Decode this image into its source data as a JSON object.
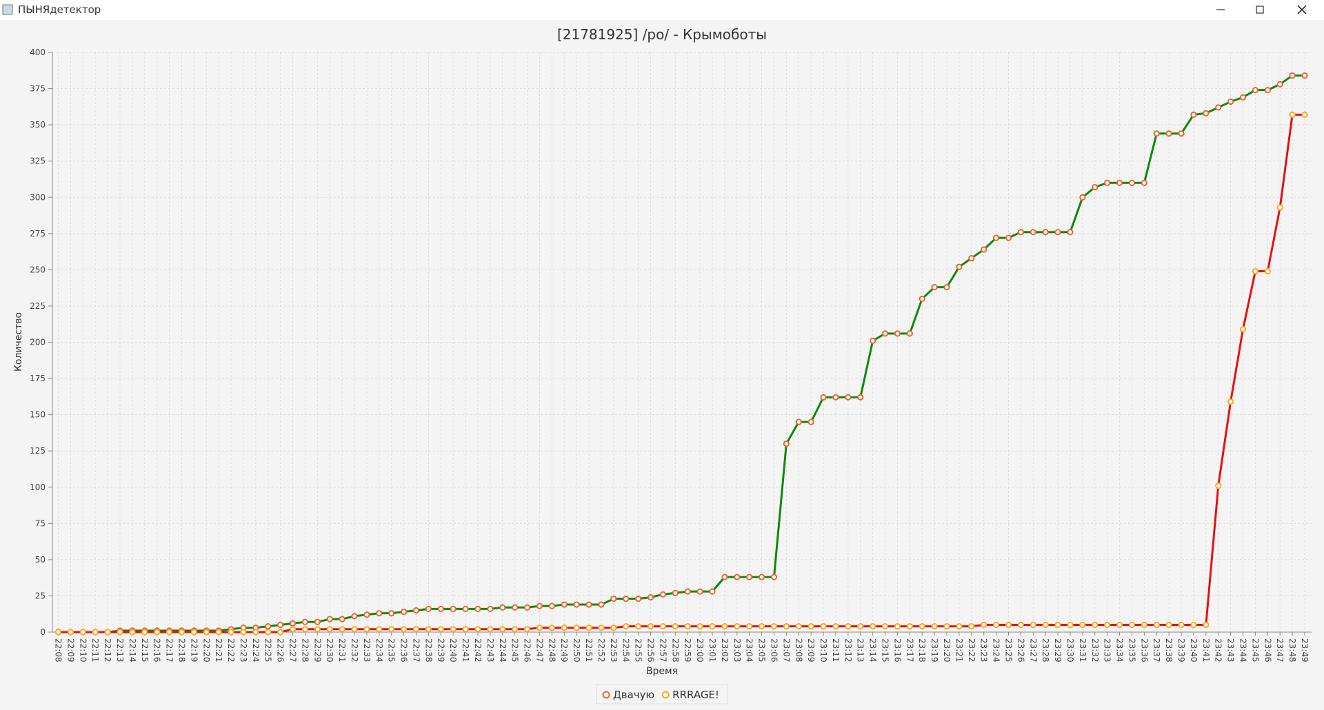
{
  "window": {
    "title": "ПЫНЯдетектор"
  },
  "chart_data": {
    "type": "line",
    "title": "[21781925] /po/ - Крымоботы",
    "x_label": "Время",
    "y_label": "Количество",
    "categories": [
      "22:08",
      "22:09",
      "22:10",
      "22:11",
      "22:12",
      "22:13",
      "22:14",
      "22:15",
      "22:16",
      "22:17",
      "22:18",
      "22:19",
      "22:20",
      "22:21",
      "22:22",
      "22:23",
      "22:24",
      "22:25",
      "22:26",
      "22:27",
      "22:28",
      "22:29",
      "22:30",
      "22:31",
      "22:32",
      "22:33",
      "22:34",
      "22:35",
      "22:36",
      "22:37",
      "22:38",
      "22:39",
      "22:40",
      "22:41",
      "22:42",
      "22:43",
      "22:44",
      "22:45",
      "22:46",
      "22:47",
      "22:48",
      "22:49",
      "22:50",
      "22:51",
      "22:52",
      "22:53",
      "22:54",
      "22:55",
      "22:56",
      "22:57",
      "22:58",
      "22:59",
      "23:00",
      "23:01",
      "23:02",
      "23:03",
      "23:04",
      "23:05",
      "23:06",
      "23:07",
      "23:08",
      "23:09",
      "23:10",
      "23:11",
      "23:12",
      "23:13",
      "23:14",
      "23:15",
      "23:16",
      "23:17",
      "23:18",
      "23:19",
      "23:20",
      "23:21",
      "23:22",
      "23:23",
      "23:24",
      "23:25",
      "23:26",
      "23:27",
      "23:28",
      "23:29",
      "23:30",
      "23:31",
      "23:32",
      "23:33",
      "23:34",
      "23:35",
      "23:36",
      "23:37",
      "23:38",
      "23:39",
      "23:40",
      "23:41",
      "23:42",
      "23:43",
      "23:44",
      "23:45",
      "23:46",
      "23:47",
      "23:48",
      "23:49"
    ],
    "series": [
      {
        "name": "Двачую",
        "color": "#0a8a0a",
        "marker_color": "#f3622d",
        "values": [
          0,
          0,
          0,
          0,
          0,
          1,
          1,
          1,
          1,
          1,
          1,
          1,
          1,
          1,
          2,
          3,
          3,
          4,
          5,
          6,
          7,
          7,
          9,
          9,
          11,
          12,
          13,
          13,
          14,
          15,
          16,
          16,
          16,
          16,
          16,
          16,
          17,
          17,
          17,
          18,
          18,
          19,
          19,
          19,
          19,
          23,
          23,
          23,
          24,
          26,
          27,
          28,
          28,
          28,
          38,
          38,
          38,
          38,
          38,
          130,
          145,
          145,
          162,
          162,
          162,
          162,
          201,
          206,
          206,
          206,
          230,
          238,
          238,
          252,
          258,
          264,
          272,
          272,
          276,
          276,
          276,
          276,
          276,
          300,
          307,
          310,
          310,
          310,
          310,
          344,
          344,
          344,
          357,
          358,
          362,
          366,
          369,
          374,
          374,
          378,
          384,
          384
        ]
      },
      {
        "name": "RRRAGE!",
        "color": "#e81010",
        "marker_color": "#fba71b",
        "values": [
          0,
          0,
          0,
          0,
          0,
          0,
          0,
          0,
          0,
          0,
          0,
          0,
          0,
          0,
          0,
          0,
          0,
          0,
          0,
          2,
          2,
          2,
          2,
          2,
          2,
          2,
          2,
          2,
          2,
          2,
          2,
          2,
          2,
          2,
          2,
          2,
          2,
          2,
          2,
          3,
          3,
          3,
          3,
          3,
          3,
          3,
          4,
          4,
          4,
          4,
          4,
          4,
          4,
          4,
          4,
          4,
          4,
          4,
          4,
          4,
          4,
          4,
          4,
          4,
          4,
          4,
          4,
          4,
          4,
          4,
          4,
          4,
          4,
          4,
          4,
          5,
          5,
          5,
          5,
          5,
          5,
          5,
          5,
          5,
          5,
          5,
          5,
          5,
          5,
          5,
          5,
          5,
          5,
          5,
          101,
          159,
          209,
          249,
          249,
          293,
          357,
          357
        ]
      }
    ],
    "ylim": [
      0,
      400
    ],
    "yticks": [
      0,
      25,
      50,
      75,
      100,
      125,
      150,
      175,
      200,
      225,
      250,
      275,
      300,
      325,
      350,
      375,
      400
    ],
    "grid": true,
    "legend": "bottom"
  }
}
